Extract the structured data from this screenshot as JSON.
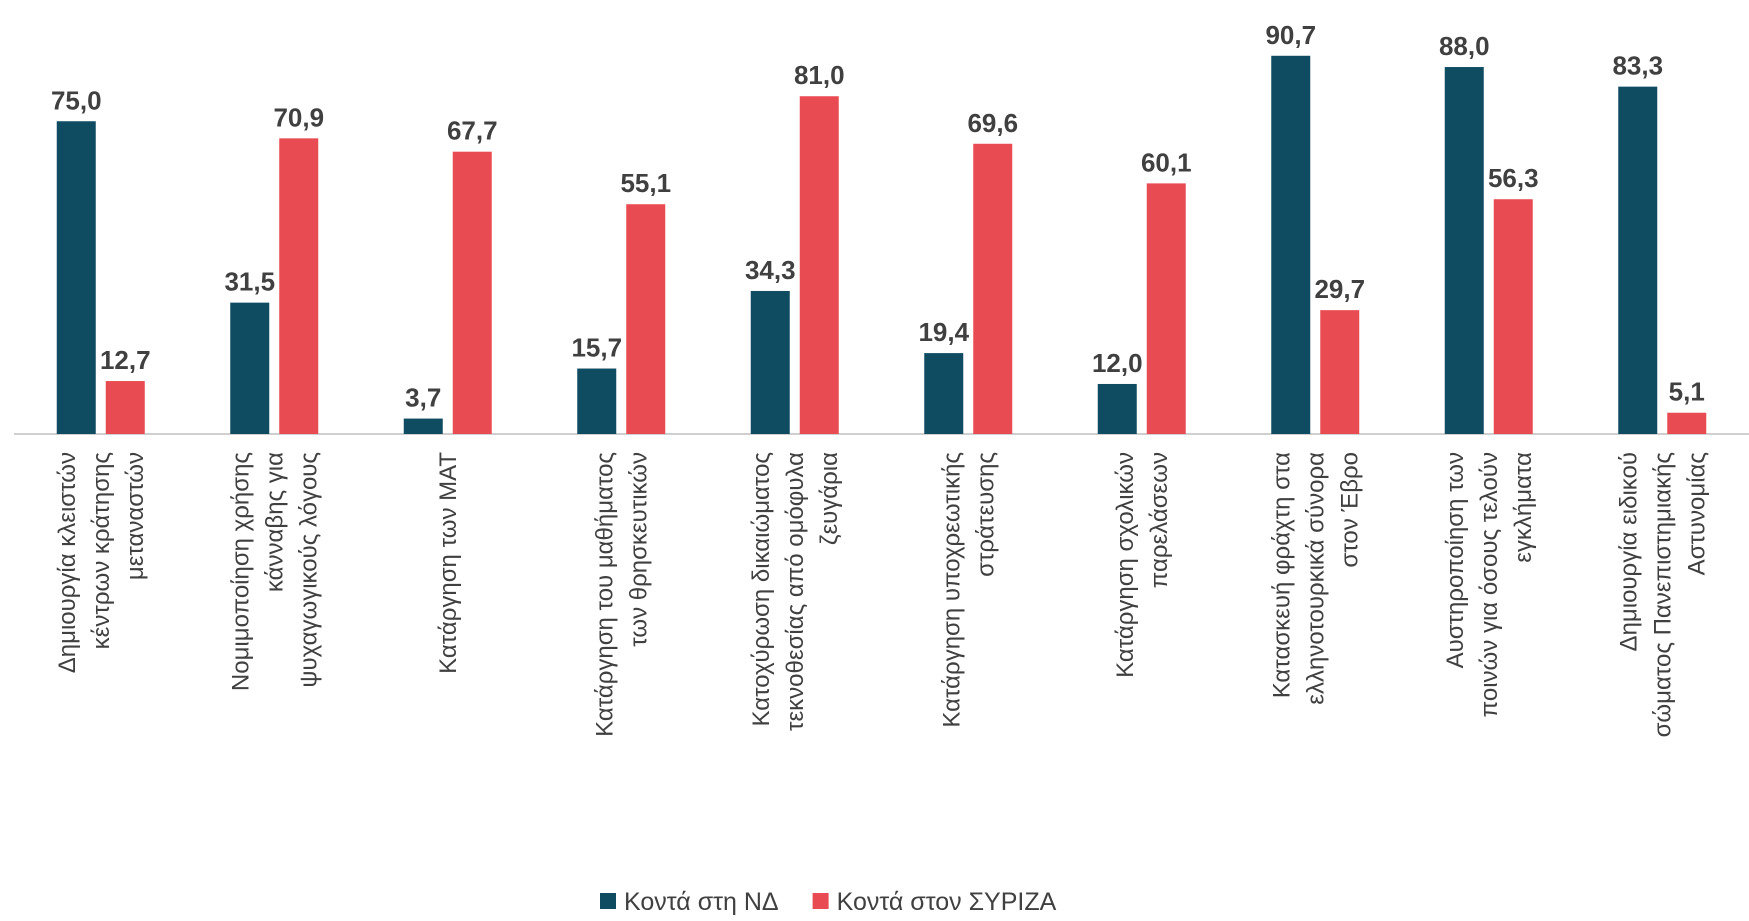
{
  "chart_data": {
    "type": "bar",
    "categories": [
      "Δημιουργία κλειστών\nκέντρων κράτησης\nμεταναστών",
      "Νομιμοποίηση χρήσης\nκάνναβης για\nψυχαγωγικούς λόγους",
      "Κατάργηση των ΜΑΤ",
      "Κατάργηση του μαθήματος\nτων θρησκευτικών",
      "Κατοχύρωση δικαιώματος\nτεκνοθεσίας από ομόφυλα\nζευγάρια",
      "Κατάργηση υποχρεωτικής\nστράτευσης",
      "Κατάργηση σχολικών\nπαρελάσεων",
      "Κατασκευή φράχτη στα\nελληνοτουρκικά σύνορα\nστον Έβρο",
      "Αυστηροποίηση των\nποινών για όσους τελούν\nεγκλήματα",
      "Δημιουργία ειδικού\nσώματος Πανεπιστημιακής\nΑστυνομίας"
    ],
    "series": [
      {
        "name": "Κοντά στη ΝΔ",
        "color": "#0f4c62",
        "values": [
          75.0,
          31.5,
          3.7,
          15.7,
          34.3,
          19.4,
          12.0,
          90.7,
          88.0,
          83.3
        ],
        "value_labels": [
          "75,0",
          "31,5",
          "3,7",
          "15,7",
          "34,3",
          "19,4",
          "12,0",
          "90,7",
          "88,0",
          "83,3"
        ]
      },
      {
        "name": "Κοντά στον ΣΥΡΙΖΑ",
        "color": "#e84b52",
        "values": [
          12.7,
          70.9,
          67.7,
          55.1,
          81.0,
          69.6,
          60.1,
          29.7,
          56.3,
          5.1
        ],
        "value_labels": [
          "12,7",
          "70,9",
          "67,7",
          "55,1",
          "81,0",
          "69,6",
          "60,1",
          "29,7",
          "56,3",
          "5,1"
        ]
      }
    ]
  }
}
